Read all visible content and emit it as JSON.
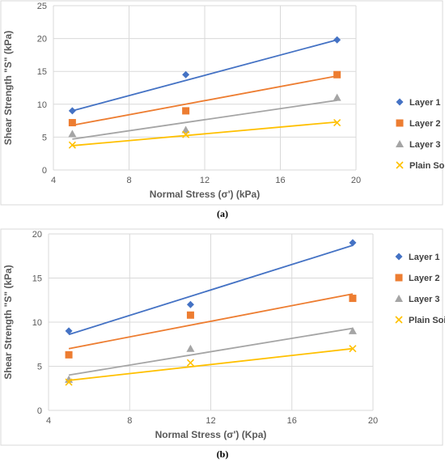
{
  "chart_data": [
    {
      "type": "scatter",
      "caption": "(a)",
      "xlabel": "Normal Stress (σ') (kPa)",
      "ylabel": "Shear Strength \"S\" (kPa)",
      "xlim": [
        4,
        20
      ],
      "ylim": [
        0,
        25
      ],
      "xticks": [
        4,
        8,
        12,
        16,
        20
      ],
      "yticks": [
        0,
        5,
        10,
        15,
        20,
        25
      ],
      "grid": true,
      "legend_position": "right",
      "series": [
        {
          "name": "Layer 1",
          "color": "#4472C4",
          "marker": "diamond",
          "x": [
            5,
            11,
            19
          ],
          "y": [
            9.0,
            14.5,
            19.8
          ],
          "trend": [
            [
              5,
              9.0
            ],
            [
              19,
              19.8
            ]
          ]
        },
        {
          "name": "Layer 2",
          "color": "#ED7D31",
          "marker": "square",
          "x": [
            5,
            11,
            19
          ],
          "y": [
            7.2,
            9.0,
            14.5
          ],
          "trend": [
            [
              5,
              6.8
            ],
            [
              19,
              14.3
            ]
          ]
        },
        {
          "name": "Layer 3",
          "color": "#A5A5A5",
          "marker": "triangle",
          "x": [
            5,
            11,
            19
          ],
          "y": [
            5.5,
            6.1,
            11.0
          ],
          "trend": [
            [
              5,
              4.7
            ],
            [
              19,
              10.6
            ]
          ]
        },
        {
          "name": "Plain Soil",
          "color": "#FFC000",
          "marker": "x",
          "x": [
            5,
            11,
            19
          ],
          "y": [
            3.8,
            5.4,
            7.2
          ],
          "trend": [
            [
              5,
              3.7
            ],
            [
              19,
              7.3
            ]
          ]
        }
      ]
    },
    {
      "type": "scatter",
      "caption": "(b)",
      "xlabel": "Normal Stress (σ') (Kpa)",
      "ylabel": "Shear Strength \"S\" (kPa)",
      "xlim": [
        4,
        20
      ],
      "ylim": [
        0,
        20
      ],
      "xticks": [
        4,
        8,
        12,
        16,
        20
      ],
      "yticks": [
        0,
        5,
        10,
        15,
        20
      ],
      "grid": true,
      "legend_position": "right",
      "series": [
        {
          "name": "Layer 1",
          "color": "#4472C4",
          "marker": "diamond",
          "x": [
            5,
            11,
            19
          ],
          "y": [
            9.0,
            12.0,
            19.0
          ],
          "trend": [
            [
              5,
              8.6
            ],
            [
              19,
              18.7
            ]
          ]
        },
        {
          "name": "Layer 2",
          "color": "#ED7D31",
          "marker": "square",
          "x": [
            5,
            11,
            19
          ],
          "y": [
            6.3,
            10.8,
            12.7
          ],
          "trend": [
            [
              5,
              7.0
            ],
            [
              19,
              13.2
            ]
          ]
        },
        {
          "name": "Layer 3",
          "color": "#A5A5A5",
          "marker": "triangle",
          "x": [
            5,
            11,
            19
          ],
          "y": [
            3.5,
            7.0,
            9.0
          ],
          "trend": [
            [
              5,
              4.0
            ],
            [
              19,
              9.3
            ]
          ]
        },
        {
          "name": "Plain Soil",
          "color": "#FFC000",
          "marker": "x",
          "x": [
            5,
            11,
            19
          ],
          "y": [
            3.2,
            5.4,
            7.0
          ],
          "trend": [
            [
              5,
              3.4
            ],
            [
              19,
              7.0
            ]
          ]
        }
      ]
    }
  ]
}
